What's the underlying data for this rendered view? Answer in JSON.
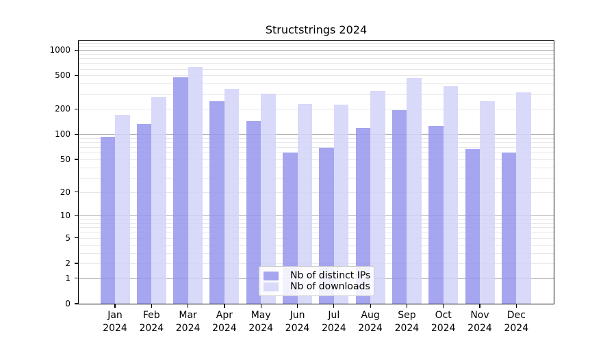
{
  "chart_data": {
    "type": "bar",
    "title": "Structstrings 2024",
    "categories": [
      {
        "month": "Jan",
        "year": "2024"
      },
      {
        "month": "Feb",
        "year": "2024"
      },
      {
        "month": "Mar",
        "year": "2024"
      },
      {
        "month": "Apr",
        "year": "2024"
      },
      {
        "month": "May",
        "year": "2024"
      },
      {
        "month": "Jun",
        "year": "2024"
      },
      {
        "month": "Jul",
        "year": "2024"
      },
      {
        "month": "Aug",
        "year": "2024"
      },
      {
        "month": "Sep",
        "year": "2024"
      },
      {
        "month": "Oct",
        "year": "2024"
      },
      {
        "month": "Nov",
        "year": "2024"
      },
      {
        "month": "Dec",
        "year": "2024"
      }
    ],
    "series": [
      {
        "name": "Nb of distinct IPs",
        "color": "rgba(149,149,237,0.85)",
        "color_hex": "#a6a6f0",
        "values": [
          94,
          132,
          472,
          245,
          144,
          60,
          69,
          118,
          194,
          126,
          67,
          60
        ]
      },
      {
        "name": "Nb of downloads",
        "color": "rgba(210,210,249,0.85)",
        "color_hex": "#dadaf9",
        "values": [
          171,
          274,
          631,
          347,
          305,
          230,
          226,
          325,
          465,
          374,
          245,
          313
        ]
      }
    ],
    "y_axis": {
      "scale": "log10(1+x)",
      "tick_values": [
        0,
        1,
        2,
        5,
        10,
        20,
        50,
        100,
        200,
        500,
        1000
      ],
      "tick_labels": [
        "0",
        "1",
        "2",
        "5",
        "10",
        "20",
        "50",
        "100",
        "200",
        "500",
        "1000"
      ],
      "range": [
        0,
        1276
      ],
      "major_grid_values": [
        1,
        10,
        100,
        1000
      ],
      "grid": "on"
    },
    "legend": {
      "position": "lower center",
      "labels": [
        "Nb of distinct IPs",
        "Nb of downloads"
      ]
    }
  },
  "colors": {
    "background": "#ffffff",
    "axis": "#000000",
    "major_grid": "#b0b0b0",
    "minor_grid": "#e7e7ea",
    "legend_border": "#cccccc",
    "text": "#000000"
  }
}
